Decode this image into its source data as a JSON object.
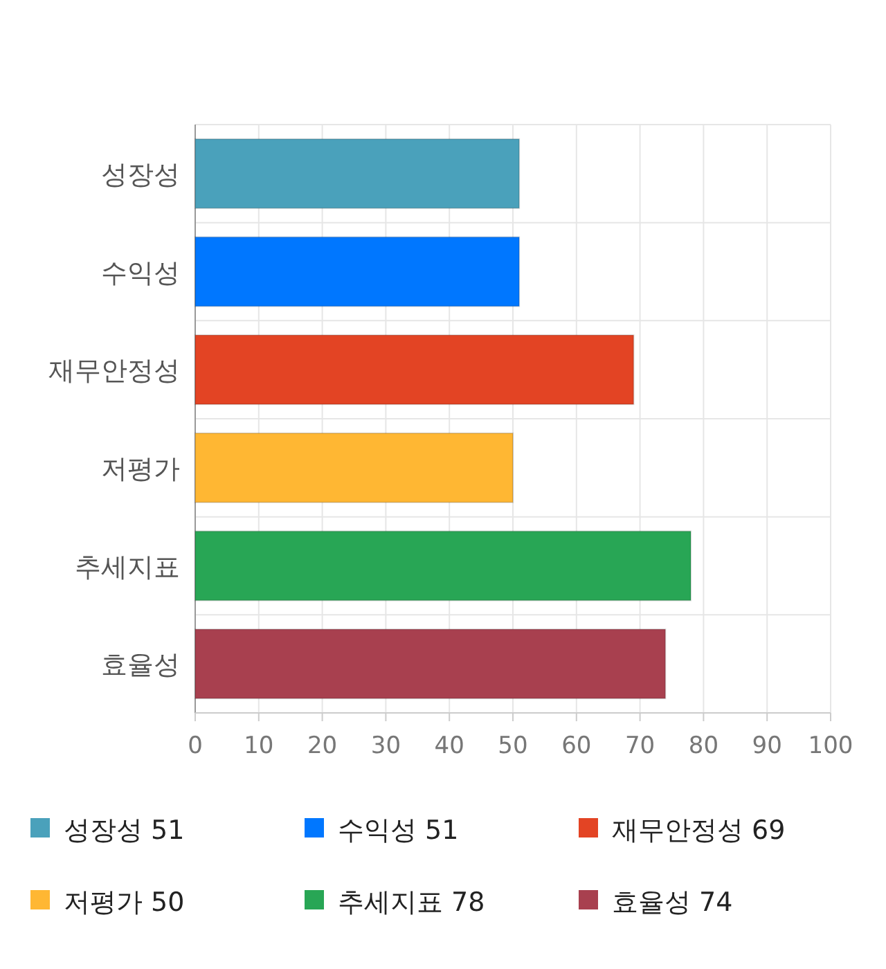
{
  "chart_data": {
    "type": "bar",
    "orientation": "horizontal",
    "categories": [
      "성장성",
      "수익성",
      "재무안정성",
      "저평가",
      "추세지표",
      "효율성"
    ],
    "series": [
      {
        "name": "성장성 51",
        "color": "#4aa1bb",
        "values": [
          51,
          null,
          null,
          null,
          null,
          null
        ]
      },
      {
        "name": "수익성 51",
        "color": "#0077ff",
        "values": [
          null,
          51,
          null,
          null,
          null,
          null
        ]
      },
      {
        "name": "재무안정성 69",
        "color": "#e34424",
        "values": [
          null,
          null,
          69,
          null,
          null,
          null
        ]
      },
      {
        "name": "저평가 50",
        "color": "#ffb733",
        "values": [
          null,
          null,
          null,
          50,
          null,
          null
        ]
      },
      {
        "name": "추세지표 78",
        "color": "#28a655",
        "values": [
          null,
          null,
          null,
          null,
          78,
          null
        ]
      },
      {
        "name": "효율성 74",
        "color": "#a8404f",
        "values": [
          null,
          null,
          null,
          null,
          null,
          74
        ]
      }
    ],
    "xlim": [
      0,
      100
    ],
    "xticks": [
      0,
      10,
      20,
      30,
      40,
      50,
      60,
      70,
      80,
      90,
      100
    ],
    "grid": true,
    "legend": "bottom"
  }
}
